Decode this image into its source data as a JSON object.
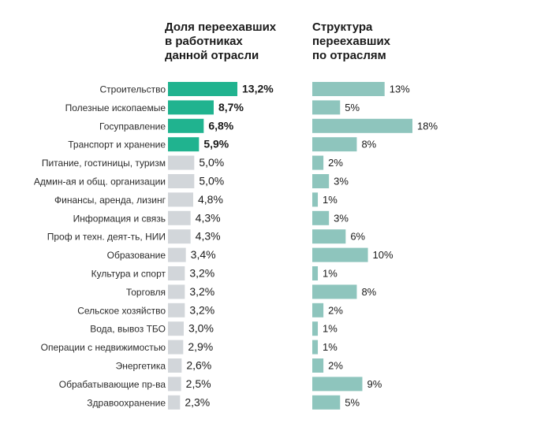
{
  "chart_data": {
    "type": "bar",
    "categories": [
      "Строительство",
      "Полезные ископаемые",
      "Госуправление",
      "Транспорт и хранение",
      "Питание, гостиницы, туризм",
      "Админ-ая и общ. организации",
      "Финансы, аренда, лизинг",
      "Информация и связь",
      "Проф и техн. деят-ть, НИИ",
      "Образование",
      "Культура и спорт",
      "Торговля",
      "Сельское хозяйство",
      "Вода, вывоз ТБО",
      "Операции с недвижимостью",
      "Энергетика",
      "Обрабатывающие пр-ва",
      "Здравоохранение"
    ],
    "series": [
      {
        "name": "Доля переехавших в работниках данной отрасли",
        "title_lines": [
          "Доля переехавших",
          "в работниках",
          "данной отрасли"
        ],
        "values": [
          13.2,
          8.7,
          6.8,
          5.9,
          5.0,
          5.0,
          4.8,
          4.3,
          4.3,
          3.4,
          3.2,
          3.2,
          3.2,
          3.0,
          2.9,
          2.6,
          2.5,
          2.3
        ],
        "labels": [
          "13,2%",
          "8,7%",
          "6,8%",
          "5,9%",
          "5,0%",
          "5,0%",
          "4,8%",
          "4,3%",
          "4,3%",
          "3,4%",
          "3,2%",
          "3,2%",
          "3,2%",
          "3,0%",
          "2,9%",
          "2,6%",
          "2,5%",
          "2,3%"
        ],
        "highlight_count": 4,
        "highlight_color": "#20b38f",
        "base_color": "#d2d6da"
      },
      {
        "name": "Структура переехавших по отраслям",
        "title_lines": [
          "Структура",
          "переехавших",
          "по отраслям"
        ],
        "values": [
          13,
          5,
          18,
          8,
          2,
          3,
          1,
          3,
          6,
          10,
          1,
          8,
          2,
          1,
          1,
          2,
          9,
          5
        ],
        "labels": [
          "13%",
          "5%",
          "18%",
          "8%",
          "2%",
          "3%",
          "1%",
          "3%",
          "6%",
          "10%",
          "1%",
          "8%",
          "2%",
          "1%",
          "1%",
          "2%",
          "9%",
          "5%"
        ],
        "color": "#8ec5bd"
      }
    ],
    "xlabel": "",
    "ylabel": ""
  }
}
